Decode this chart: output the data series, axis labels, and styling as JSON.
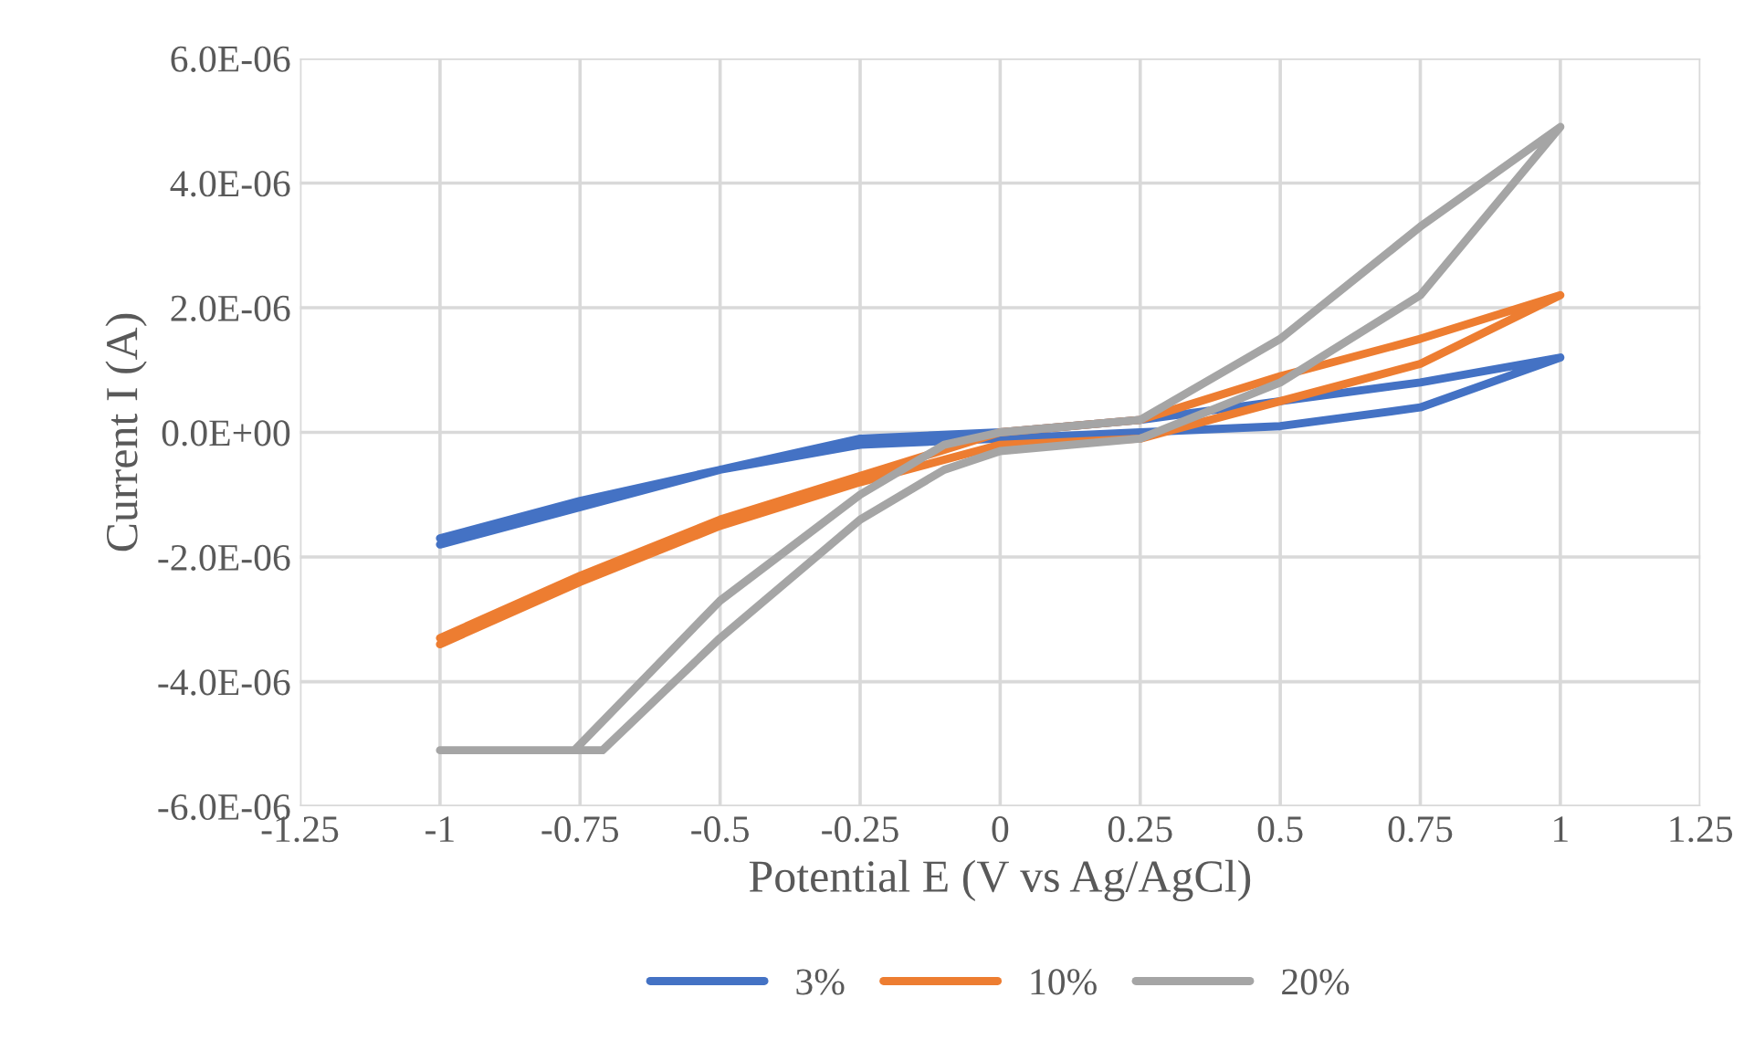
{
  "chart_data": {
    "type": "line",
    "xlabel": "Potential E (V vs Ag/AgCl)",
    "ylabel": "Current I (A)",
    "xlim": [
      -1.25,
      1.25
    ],
    "xticks": [
      -1.25,
      -1,
      -0.75,
      -0.5,
      -0.25,
      0,
      0.25,
      0.5,
      0.75,
      1,
      1.25
    ],
    "ylim": [
      -6e-06,
      6e-06
    ],
    "yticks": [
      {
        "value": -6e-06,
        "label": "-6.0E-06"
      },
      {
        "value": -4e-06,
        "label": "-4.0E-06"
      },
      {
        "value": -2e-06,
        "label": "-2.0E-06"
      },
      {
        "value": 0,
        "label": "0.0E+00"
      },
      {
        "value": 2e-06,
        "label": "2.0E-06"
      },
      {
        "value": 4e-06,
        "label": "4.0E-06"
      },
      {
        "value": 6e-06,
        "label": "6.0E-06"
      }
    ],
    "grid": true,
    "legend": "bottom",
    "marker": "none",
    "line_style": "solid",
    "series": [
      {
        "name": "3%",
        "color": "#4472c4",
        "x": [
          -1,
          -0.75,
          -0.5,
          -0.25,
          0,
          0.25,
          0.5,
          0.75,
          1,
          0.75,
          0.5,
          0.25,
          0,
          -0.25,
          -0.5,
          -0.75,
          -1
        ],
        "values": [
          -1.8e-06,
          -1.2e-06,
          -6e-07,
          -2e-07,
          -1e-07,
          0.0,
          1e-07,
          4e-07,
          1.2e-06,
          8e-07,
          5e-07,
          2e-07,
          0.0,
          -1e-07,
          -6e-07,
          -1.1e-06,
          -1.7e-06
        ]
      },
      {
        "name": "10%",
        "color": "#ed7d31",
        "x": [
          -1,
          -0.75,
          -0.5,
          -0.25,
          0,
          0.25,
          0.5,
          0.75,
          1,
          0.75,
          0.5,
          0.25,
          0,
          -0.25,
          -0.5,
          -0.75,
          -1
        ],
        "values": [
          -3.4e-06,
          -2.4e-06,
          -1.5e-06,
          -8e-07,
          -2e-07,
          -1e-07,
          5e-07,
          1.1e-06,
          2.2e-06,
          1.5e-06,
          9e-07,
          2e-07,
          0.0,
          -7e-07,
          -1.4e-06,
          -2.3e-06,
          -3.3e-06
        ]
      },
      {
        "name": "20%",
        "color": "#a5a5a5",
        "x": [
          -1,
          -0.71,
          -0.5,
          -0.25,
          -0.1,
          0,
          0.25,
          0.5,
          0.75,
          1,
          0.75,
          0.5,
          0.25,
          0,
          -0.1,
          -0.25,
          -0.5,
          -0.76
        ],
        "values": [
          -5.1e-06,
          -5.1e-06,
          -3.3e-06,
          -1.4e-06,
          -6e-07,
          -3e-07,
          -1e-07,
          8e-07,
          2.2e-06,
          4.9e-06,
          3.3e-06,
          1.5e-06,
          2e-07,
          0.0,
          -2e-07,
          -1e-06,
          -2.7e-06,
          -5.1e-06
        ]
      }
    ]
  }
}
